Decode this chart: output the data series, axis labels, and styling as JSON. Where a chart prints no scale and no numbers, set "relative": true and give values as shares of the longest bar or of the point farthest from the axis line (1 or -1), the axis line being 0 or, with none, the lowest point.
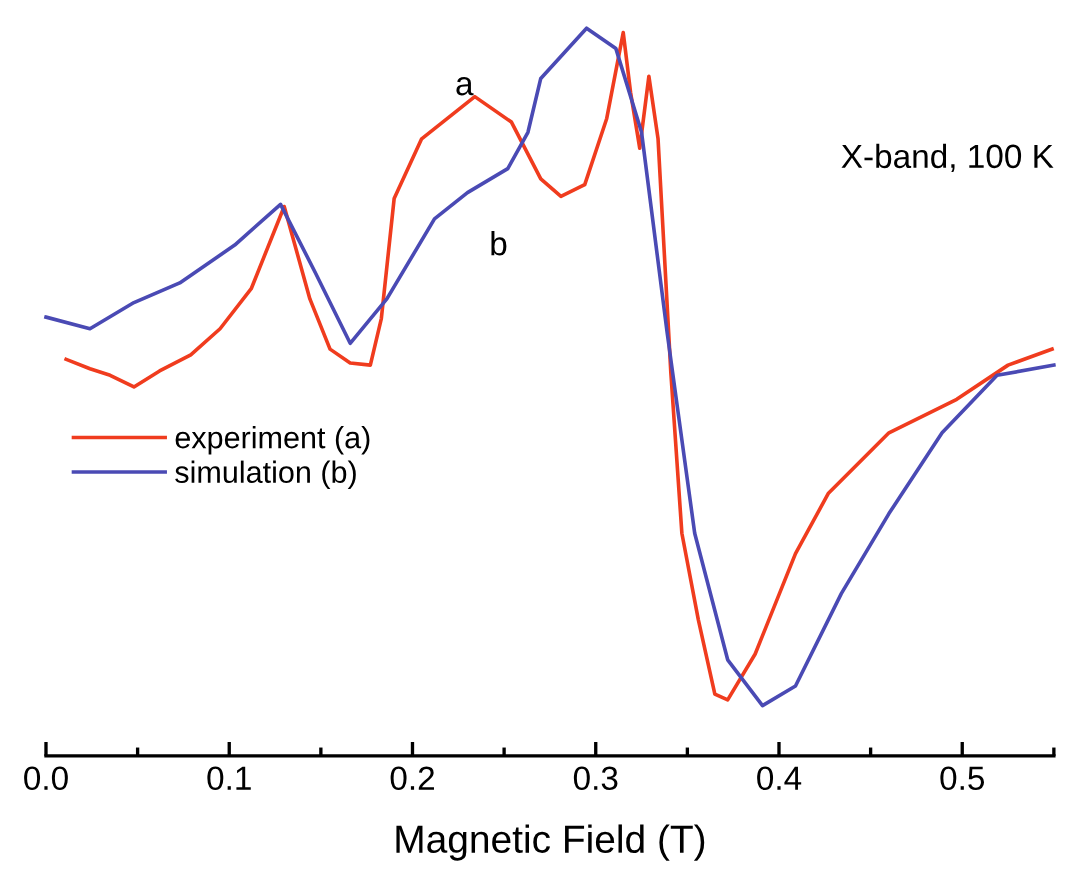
{
  "chart_data": {
    "type": "line",
    "xlabel": "Magnetic Field (T)",
    "relative": true,
    "xlim": [
      0,
      0.55
    ],
    "xticks": [
      {
        "value": 0,
        "label": "0.0"
      },
      {
        "value": 0.05,
        "label": null
      },
      {
        "value": 0.1,
        "label": "0.1"
      },
      {
        "value": 0.15,
        "label": null
      },
      {
        "value": 0.2,
        "label": "0.2"
      },
      {
        "value": 0.25,
        "label": null
      },
      {
        "value": 0.3,
        "label": "0.3"
      },
      {
        "value": 0.35,
        "label": null
      },
      {
        "value": 0.4,
        "label": "0.4"
      },
      {
        "value": 0.45,
        "label": null
      },
      {
        "value": 0.5,
        "label": "0.5"
      },
      {
        "value": 0.55,
        "label": null
      }
    ],
    "tick_labels": "x",
    "legend": "left",
    "grid": false,
    "marker": "none",
    "line_style": "solid",
    "annotations": [
      "a",
      "b",
      "X-band, 100 K"
    ],
    "series": [
      {
        "name": "experiment (a)",
        "color": "#f03c1e",
        "x": [
          0.011,
          0.024,
          0.035,
          0.048,
          0.062,
          0.079,
          0.095,
          0.112,
          0.13,
          0.144,
          0.155,
          0.166,
          0.177,
          0.183,
          0.19,
          0.205,
          0.234,
          0.254,
          0.27,
          0.281,
          0.294,
          0.306,
          0.315,
          0.319,
          0.324,
          0.329,
          0.334,
          0.341,
          0.347,
          0.356,
          0.365,
          0.372,
          0.387,
          0.409,
          0.427,
          0.46,
          0.497,
          0.525,
          0.549
        ],
        "values": [
          0.545,
          0.532,
          0.523,
          0.507,
          0.529,
          0.551,
          0.587,
          0.642,
          0.755,
          0.628,
          0.559,
          0.54,
          0.537,
          0.601,
          0.766,
          0.848,
          0.906,
          0.871,
          0.793,
          0.769,
          0.785,
          0.876,
          0.994,
          0.912,
          0.835,
          0.934,
          0.848,
          0.526,
          0.306,
          0.187,
          0.085,
          0.077,
          0.14,
          0.278,
          0.361,
          0.444,
          0.49,
          0.537,
          0.559
        ]
      },
      {
        "name": "simulation (b)",
        "color": "#4a4ab4",
        "x": [
          0.0,
          0.024,
          0.048,
          0.073,
          0.103,
          0.128,
          0.147,
          0.166,
          0.186,
          0.212,
          0.23,
          0.252,
          0.263,
          0.27,
          0.295,
          0.311,
          0.325,
          0.339,
          0.354,
          0.372,
          0.391,
          0.409,
          0.434,
          0.46,
          0.489,
          0.519,
          0.55
        ],
        "values": [
          0.603,
          0.587,
          0.623,
          0.65,
          0.702,
          0.758,
          0.664,
          0.567,
          0.628,
          0.738,
          0.774,
          0.807,
          0.857,
          0.931,
          1.0,
          0.972,
          0.857,
          0.581,
          0.306,
          0.132,
          0.069,
          0.096,
          0.223,
          0.333,
          0.444,
          0.523,
          0.537
        ]
      }
    ]
  }
}
